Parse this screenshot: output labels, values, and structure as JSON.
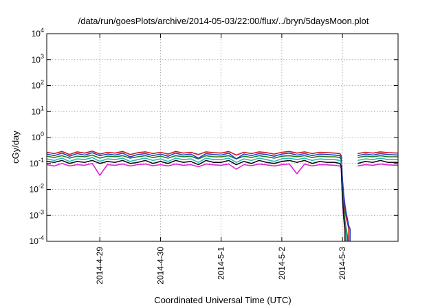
{
  "chart_data": {
    "type": "line",
    "title": "/data/run/goesPlots/archive/2014-05-03/22:00/flux/../bryn/5daysMoon.plot",
    "xlabel": "Coordinated Universal Time (UTC)",
    "ylabel": "cGy/day",
    "yscale": "log",
    "ylim": [
      0.0001,
      10000
    ],
    "xlim": [
      "2014-04-28T03:00",
      "2014-05-03T22:00"
    ],
    "grid": true,
    "legend": "none",
    "x_ticks": [
      {
        "label": "2014-4-29",
        "value": "2014-04-29T00:00"
      },
      {
        "label": "2014-4-30",
        "value": "2014-04-30T00:00"
      },
      {
        "label": "2014-5-1",
        "value": "2014-05-01T00:00"
      },
      {
        "label": "2014-5-2",
        "value": "2014-05-02T00:00"
      },
      {
        "label": "2014-5-3",
        "value": "2014-05-03T00:00"
      }
    ],
    "y_ticks": [
      {
        "base": "10",
        "exp": "-4",
        "value": 0.0001
      },
      {
        "base": "10",
        "exp": "-3",
        "value": 0.001
      },
      {
        "base": "10",
        "exp": "-2",
        "value": 0.01
      },
      {
        "base": "10",
        "exp": "-1",
        "value": 0.1
      },
      {
        "base": "10",
        "exp": "0",
        "value": 1
      },
      {
        "base": "10",
        "exp": "1",
        "value": 10
      },
      {
        "base": "10",
        "exp": "2",
        "value": 100
      },
      {
        "base": "10",
        "exp": "3",
        "value": 1000
      },
      {
        "base": "10",
        "exp": "4",
        "value": 10000
      }
    ],
    "x": [
      "2014-04-28T03:00",
      "2014-04-28T06:00",
      "2014-04-28T09:00",
      "2014-04-28T12:00",
      "2014-04-28T15:00",
      "2014-04-28T18:00",
      "2014-04-28T21:00",
      "2014-04-29T00:00",
      "2014-04-29T03:00",
      "2014-04-29T06:00",
      "2014-04-29T09:00",
      "2014-04-29T12:00",
      "2014-04-29T15:00",
      "2014-04-29T18:00",
      "2014-04-29T21:00",
      "2014-04-30T00:00",
      "2014-04-30T03:00",
      "2014-04-30T06:00",
      "2014-04-30T09:00",
      "2014-04-30T12:00",
      "2014-04-30T15:00",
      "2014-04-30T18:00",
      "2014-04-30T21:00",
      "2014-05-01T00:00",
      "2014-05-01T03:00",
      "2014-05-01T06:00",
      "2014-05-01T09:00",
      "2014-05-01T12:00",
      "2014-05-01T15:00",
      "2014-05-01T18:00",
      "2014-05-01T21:00",
      "2014-05-02T00:00",
      "2014-05-02T03:00",
      "2014-05-02T06:00",
      "2014-05-02T09:00",
      "2014-05-02T12:00",
      "2014-05-02T15:00",
      "2014-05-02T18:00",
      "2014-05-02T21:00",
      "2014-05-02T23:00",
      "2014-05-02T23:30",
      "2014-05-03T00:00",
      "2014-05-03T00:30",
      "2014-05-03T01:00",
      "2014-05-03T01:30",
      "2014-05-03T02:00",
      "2014-05-03T02:30",
      "2014-05-03T03:00",
      "2014-05-03T03:30",
      "2014-05-03T04:00",
      "2014-05-03T04:30",
      "2014-05-03T05:00",
      "2014-05-03T05:30",
      "2014-05-03T06:00",
      "2014-05-03T09:00",
      "2014-05-03T12:00",
      "2014-05-03T15:00",
      "2014-05-03T18:00",
      "2014-05-03T22:00"
    ],
    "series": [
      {
        "color": "#d4141c",
        "values": [
          0.27,
          0.24,
          0.29,
          0.22,
          0.28,
          0.25,
          0.3,
          0.23,
          0.27,
          0.25,
          0.29,
          0.22,
          0.26,
          0.28,
          0.24,
          0.27,
          0.23,
          0.29,
          0.25,
          0.27,
          0.22,
          0.28,
          0.26,
          0.25,
          0.29,
          0.21,
          0.27,
          0.24,
          0.28,
          0.26,
          0.23,
          0.27,
          0.29,
          0.25,
          0.28,
          0.24,
          0.27,
          0.26,
          0.25,
          0.24,
          0.2,
          0.02,
          0.004,
          0.0015,
          0.0008,
          0.0005,
          0.0003,
          null,
          null,
          null,
          null,
          null,
          null,
          0.24,
          0.27,
          0.25,
          0.28,
          0.26,
          0.25
        ]
      },
      {
        "color": "#1f7a1f",
        "values": [
          0.19,
          0.17,
          0.2,
          0.16,
          0.19,
          0.18,
          0.21,
          0.16,
          0.19,
          0.18,
          0.2,
          0.16,
          0.18,
          0.2,
          0.17,
          0.19,
          0.16,
          0.2,
          0.18,
          0.19,
          0.15,
          0.2,
          0.18,
          0.18,
          0.2,
          0.15,
          0.19,
          0.17,
          0.2,
          0.18,
          0.16,
          0.19,
          0.2,
          0.18,
          0.2,
          0.17,
          0.19,
          0.18,
          0.18,
          0.17,
          0.14,
          0.01,
          0.002,
          0.0006,
          0.0003,
          0.00015,
          null,
          null,
          null,
          null,
          null,
          null,
          null,
          0.17,
          0.19,
          0.18,
          0.2,
          0.18,
          0.18
        ]
      },
      {
        "color": "#1a3fd6",
        "values": [
          0.23,
          0.2,
          0.25,
          0.19,
          0.24,
          0.21,
          0.26,
          0.2,
          0.23,
          0.21,
          0.25,
          0.18,
          0.22,
          0.24,
          0.2,
          0.23,
          0.19,
          0.25,
          0.21,
          0.23,
          0.16,
          0.24,
          0.22,
          0.21,
          0.25,
          0.15,
          0.23,
          0.2,
          0.24,
          0.22,
          0.19,
          0.23,
          0.25,
          0.21,
          0.24,
          0.2,
          0.23,
          0.22,
          0.21,
          0.2,
          0.17,
          0.025,
          0.006,
          0.0025,
          0.0012,
          0.0007,
          0.0004,
          0.0003,
          null,
          null,
          null,
          null,
          null,
          0.2,
          0.23,
          0.21,
          0.24,
          0.22,
          0.21
        ]
      },
      {
        "color": "#e020d8",
        "values": [
          0.09,
          0.08,
          0.1,
          0.08,
          0.09,
          0.085,
          0.1,
          0.035,
          0.09,
          0.085,
          0.095,
          0.08,
          0.09,
          0.095,
          0.082,
          0.09,
          0.08,
          0.095,
          0.085,
          0.09,
          0.075,
          0.095,
          0.088,
          0.085,
          0.095,
          0.06,
          0.09,
          0.082,
          0.095,
          0.088,
          0.08,
          0.09,
          0.095,
          0.04,
          0.095,
          0.08,
          0.09,
          0.088,
          0.085,
          0.08,
          0.065,
          0.004,
          0.0007,
          0.00025,
          null,
          null,
          null,
          null,
          null,
          null,
          null,
          null,
          null,
          0.08,
          0.09,
          0.085,
          0.095,
          0.088,
          0.085
        ]
      },
      {
        "color": "#2ab5b5",
        "values": [
          0.15,
          0.13,
          0.16,
          0.12,
          0.15,
          0.14,
          0.17,
          0.12,
          0.15,
          0.14,
          0.16,
          0.12,
          0.14,
          0.16,
          0.13,
          0.15,
          0.12,
          0.16,
          0.14,
          0.15,
          0.11,
          0.16,
          0.14,
          0.14,
          0.16,
          0.11,
          0.15,
          0.13,
          0.16,
          0.14,
          0.12,
          0.15,
          0.16,
          0.14,
          0.16,
          0.13,
          0.15,
          0.14,
          0.14,
          0.13,
          0.1,
          0.006,
          0.001,
          0.0004,
          0.0002,
          null,
          null,
          null,
          null,
          null,
          null,
          null,
          null,
          0.13,
          0.15,
          0.14,
          0.16,
          0.14,
          0.14
        ]
      },
      {
        "color": "#111111",
        "values": [
          0.12,
          0.11,
          0.13,
          0.1,
          0.12,
          0.11,
          0.13,
          0.1,
          0.12,
          0.11,
          0.13,
          0.1,
          0.11,
          0.13,
          0.1,
          0.12,
          0.1,
          0.13,
          0.11,
          0.12,
          0.09,
          0.13,
          0.11,
          0.11,
          0.13,
          0.09,
          0.12,
          0.1,
          0.13,
          0.11,
          0.1,
          0.12,
          0.13,
          0.11,
          0.13,
          0.1,
          0.12,
          0.11,
          0.11,
          0.1,
          0.08,
          0.005,
          0.0009,
          0.0003,
          null,
          null,
          null,
          null,
          null,
          null,
          null,
          null,
          null,
          0.1,
          0.12,
          0.11,
          0.13,
          0.11,
          0.11
        ]
      }
    ]
  }
}
